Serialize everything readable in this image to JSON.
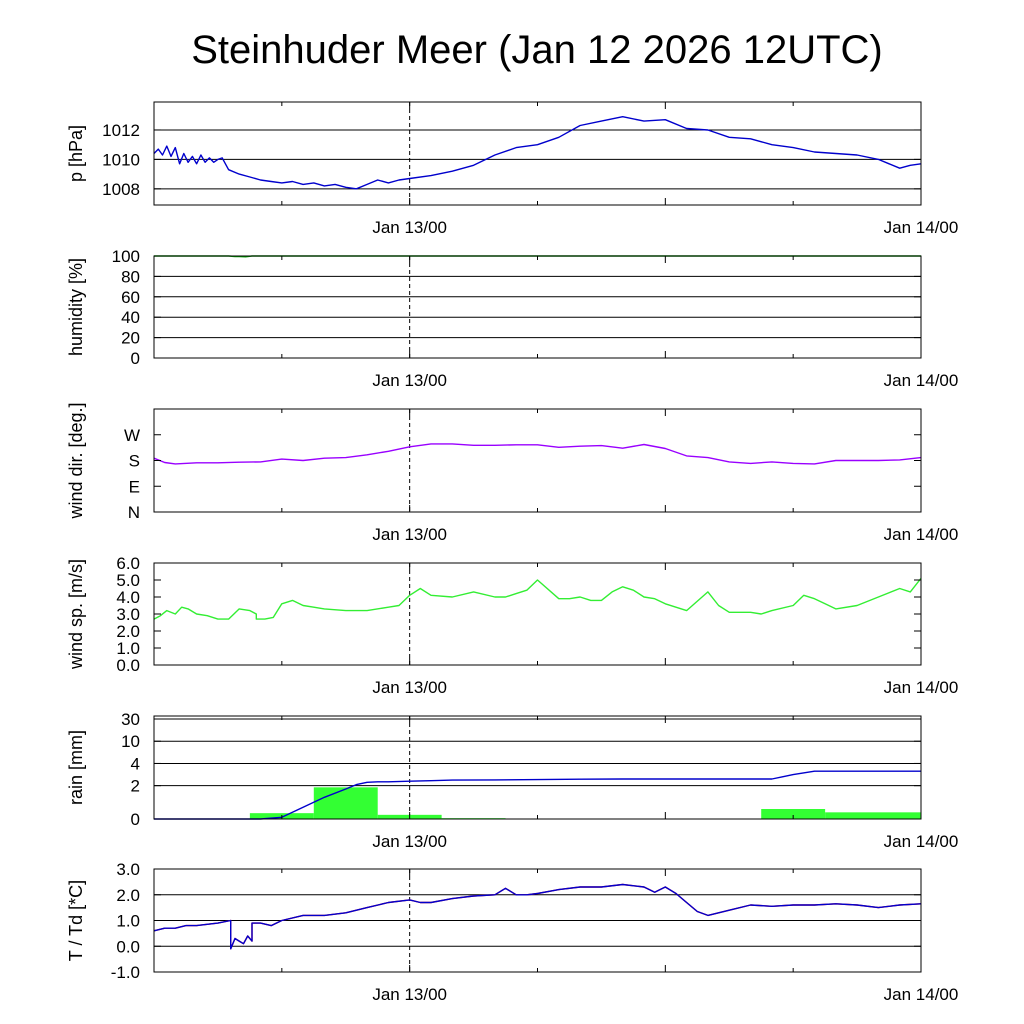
{
  "chart_title": "Steinhuder Meer (Jan 12 2026 12UTC)",
  "colors": {
    "pressure": "#0000cc",
    "humidity": "#00aa00",
    "wind_dir": "#9900ff",
    "wind_speed": "#33ee33",
    "rain_bar": "#33ff33",
    "rain_cum": "#0000cc",
    "temperature": "#ff0000",
    "dewpoint": "#0000cc"
  },
  "chart_data": [
    {
      "type": "line",
      "name": "pressure",
      "ylabel": "p [hPa]",
      "xlabel": "",
      "x_range": [
        12,
        48
      ],
      "ylim": [
        1006.9,
        1013.9
      ],
      "yticks": [
        {
          "v": 1008,
          "label": "1008"
        },
        {
          "v": 1010,
          "label": "1010"
        },
        {
          "v": 1012,
          "label": "1012"
        }
      ],
      "gridlines": [
        1008,
        1010,
        1012
      ],
      "xticks": [
        {
          "v": 24,
          "label": "Jan 13/00"
        },
        {
          "v": 48,
          "label": "Jan 14/00"
        }
      ],
      "series": [
        {
          "name": "pressure",
          "color_key": "pressure",
          "x": [
            12,
            12.2,
            12.4,
            12.6,
            12.8,
            13,
            13.2,
            13.4,
            13.6,
            13.8,
            14,
            14.2,
            14.4,
            14.6,
            14.8,
            15,
            15.2,
            15.5,
            16,
            16.5,
            17,
            17.5,
            18,
            18.5,
            19,
            19.5,
            20,
            20.5,
            21,
            21.5,
            22,
            22.5,
            23,
            23.5,
            24,
            25,
            26,
            27,
            28,
            29,
            30,
            31,
            32,
            33,
            34,
            35,
            36,
            37,
            38,
            39,
            40,
            41,
            42,
            43,
            44,
            45,
            46,
            47,
            47.5,
            48
          ],
          "values": [
            1010.4,
            1010.7,
            1010.3,
            1010.9,
            1010.2,
            1010.8,
            1009.7,
            1010.4,
            1009.8,
            1010.2,
            1009.7,
            1010.3,
            1009.8,
            1010.1,
            1009.8,
            1010.0,
            1010.1,
            1009.3,
            1009.0,
            1008.8,
            1008.6,
            1008.5,
            1008.4,
            1008.5,
            1008.3,
            1008.4,
            1008.2,
            1008.3,
            1008.1,
            1008.0,
            1008.3,
            1008.6,
            1008.4,
            1008.6,
            1008.7,
            1008.9,
            1009.2,
            1009.6,
            1010.3,
            1010.8,
            1011.0,
            1011.5,
            1012.3,
            1012.6,
            1012.9,
            1012.6,
            1012.7,
            1012.1,
            1012.0,
            1011.5,
            1011.4,
            1011.0,
            1010.8,
            1010.5,
            1010.4,
            1010.3,
            1010.0,
            1009.4,
            1009.6,
            1009.7
          ]
        }
      ]
    },
    {
      "type": "line",
      "name": "humidity",
      "ylabel": "humidity [%]",
      "xlabel": "",
      "x_range": [
        12,
        48
      ],
      "ylim": [
        0,
        100
      ],
      "yticks": [
        {
          "v": 0,
          "label": "0"
        },
        {
          "v": 20,
          "label": "20"
        },
        {
          "v": 40,
          "label": "40"
        },
        {
          "v": 60,
          "label": "60"
        },
        {
          "v": 80,
          "label": "80"
        },
        {
          "v": 100,
          "label": "100"
        }
      ],
      "gridlines": [
        20,
        40,
        60,
        80
      ],
      "xticks": [
        {
          "v": 24,
          "label": "Jan 13/00"
        },
        {
          "v": 48,
          "label": "Jan 14/00"
        }
      ],
      "series": [
        {
          "name": "humidity",
          "color_key": "humidity",
          "x": [
            12,
            15.5,
            15.8,
            16,
            16.3,
            16.6,
            17,
            48
          ],
          "values": [
            100,
            100,
            99.5,
            99.4,
            99.2,
            100,
            100,
            100
          ]
        }
      ]
    },
    {
      "type": "line",
      "name": "wind_direction",
      "ylabel": "wind dir. [deg.]",
      "xlabel": "",
      "x_range": [
        12,
        48
      ],
      "ylim": [
        0,
        360
      ],
      "yticks": [
        {
          "v": 0,
          "label": "N"
        },
        {
          "v": 90,
          "label": "E"
        },
        {
          "v": 180,
          "label": "S"
        },
        {
          "v": 270,
          "label": "W"
        }
      ],
      "gridlines": [],
      "xticks": [
        {
          "v": 24,
          "label": "Jan 13/00"
        },
        {
          "v": 48,
          "label": "Jan 14/00"
        }
      ],
      "series": [
        {
          "name": "wind_direction",
          "color_key": "wind_dir",
          "x": [
            12,
            12.5,
            13,
            14,
            15,
            16,
            17,
            18,
            19,
            20,
            21,
            22,
            23,
            24,
            25,
            26,
            27,
            28,
            29,
            30,
            31,
            32,
            33,
            34,
            35,
            36,
            37,
            38,
            39,
            40,
            41,
            42,
            43,
            44,
            45,
            46,
            47,
            48
          ],
          "values": [
            188,
            173,
            168,
            172,
            172,
            174,
            175,
            185,
            180,
            188,
            190,
            200,
            212,
            228,
            238,
            238,
            233,
            233,
            235,
            235,
            226,
            230,
            232,
            223,
            236,
            222,
            196,
            190,
            175,
            170,
            175,
            170,
            168,
            180,
            180,
            180,
            182,
            190
          ]
        }
      ]
    },
    {
      "type": "line",
      "name": "wind_speed",
      "ylabel": "wind sp. [m/s]",
      "xlabel": "",
      "x_range": [
        12,
        48
      ],
      "ylim": [
        0,
        6
      ],
      "yticks": [
        {
          "v": 0,
          "label": "0.0"
        },
        {
          "v": 1,
          "label": "1.0"
        },
        {
          "v": 2,
          "label": "2.0"
        },
        {
          "v": 3,
          "label": "3.0"
        },
        {
          "v": 4,
          "label": "4.0"
        },
        {
          "v": 5,
          "label": "5.0"
        },
        {
          "v": 6,
          "label": "6.0"
        }
      ],
      "gridlines": [],
      "xticks": [
        {
          "v": 24,
          "label": "Jan 13/00"
        },
        {
          "v": 48,
          "label": "Jan 14/00"
        }
      ],
      "series": [
        {
          "name": "wind_speed",
          "color_key": "wind_speed",
          "x": [
            12,
            12.3,
            12.6,
            13,
            13.3,
            13.6,
            14,
            14.5,
            15,
            15.5,
            16,
            16.5,
            16.8,
            16.8,
            17,
            17.2,
            17.6,
            18,
            18.5,
            19,
            19.5,
            20,
            21,
            22,
            23,
            23.5,
            24,
            24.5,
            25,
            26,
            27,
            28,
            28.5,
            29,
            29.5,
            30,
            31,
            31.5,
            32,
            32.5,
            33,
            33.5,
            34,
            34.5,
            35,
            35.5,
            36,
            37,
            38,
            38.5,
            39,
            40,
            40.5,
            41,
            42,
            42.5,
            43,
            43.5,
            44,
            45,
            46,
            47,
            47.5,
            48
          ],
          "values": [
            2.7,
            2.9,
            3.2,
            3.0,
            3.4,
            3.3,
            3.0,
            2.9,
            2.7,
            2.7,
            3.3,
            3.2,
            3.0,
            2.7,
            2.7,
            2.7,
            2.8,
            3.6,
            3.8,
            3.5,
            3.4,
            3.3,
            3.2,
            3.2,
            3.4,
            3.5,
            4.1,
            4.5,
            4.1,
            4.0,
            4.3,
            4.0,
            4.0,
            4.2,
            4.4,
            5.0,
            3.9,
            3.9,
            4.0,
            3.8,
            3.8,
            4.3,
            4.6,
            4.4,
            4.0,
            3.9,
            3.6,
            3.2,
            4.3,
            3.5,
            3.1,
            3.1,
            3.0,
            3.2,
            3.5,
            4.1,
            3.9,
            3.6,
            3.3,
            3.5,
            4.0,
            4.5,
            4.3,
            5.1
          ]
        }
      ]
    },
    {
      "type": "bar",
      "name": "rain",
      "ylabel": "rain [mm]",
      "xlabel": "",
      "x_range": [
        12,
        48
      ],
      "y_scale": "piecewise",
      "y_anchors": [
        [
          0,
          0
        ],
        [
          2,
          1.5
        ],
        [
          4,
          2.5
        ],
        [
          10,
          3.5
        ],
        [
          30,
          4.5
        ]
      ],
      "yticks": [
        {
          "v": 0,
          "label": "0"
        },
        {
          "v": 2,
          "label": "2"
        },
        {
          "v": 4,
          "label": "4"
        },
        {
          "v": 10,
          "label": "10"
        },
        {
          "v": 30,
          "label": "30"
        }
      ],
      "gridlines": [
        2,
        4,
        10,
        30
      ],
      "xticks": [
        {
          "v": 24,
          "label": "Jan 13/00"
        },
        {
          "v": 48,
          "label": "Jan 14/00"
        }
      ],
      "bars": [
        {
          "x0": 16.5,
          "x1": 19.5,
          "value": 0.35
        },
        {
          "x0": 19.5,
          "x1": 22.5,
          "value": 1.9
        },
        {
          "x0": 22.5,
          "x1": 25.5,
          "value": 0.25
        },
        {
          "x0": 25.5,
          "x1": 28.5,
          "value": 0.05
        },
        {
          "x0": 40.5,
          "x1": 43.5,
          "value": 0.6
        },
        {
          "x0": 43.5,
          "x1": 48,
          "value": 0.4
        }
      ],
      "series": [
        {
          "name": "accumulated rain",
          "color_key": "rain_cum",
          "x": [
            12,
            17,
            18,
            19,
            20,
            21,
            21.5,
            22,
            22.5,
            23,
            24,
            25,
            26,
            28,
            30,
            32,
            34,
            36,
            38,
            40,
            41,
            41.5,
            42,
            43,
            44,
            46,
            48
          ],
          "values": [
            0,
            0,
            0.1,
            0.7,
            1.3,
            1.8,
            2.1,
            2.3,
            2.35,
            2.35,
            2.4,
            2.45,
            2.5,
            2.52,
            2.55,
            2.58,
            2.6,
            2.6,
            2.6,
            2.6,
            2.6,
            2.8,
            3.0,
            3.3,
            3.3,
            3.3,
            3.3
          ]
        }
      ]
    },
    {
      "type": "line",
      "name": "temperature_dewpoint",
      "ylabel": "T / Td [*C]",
      "xlabel": "",
      "x_range": [
        12,
        48
      ],
      "ylim": [
        -1,
        3
      ],
      "yticks": [
        {
          "v": -1,
          "label": "-1.0"
        },
        {
          "v": 0,
          "label": "0.0"
        },
        {
          "v": 1,
          "label": "1.0"
        },
        {
          "v": 2,
          "label": "2.0"
        },
        {
          "v": 3,
          "label": "3.0"
        }
      ],
      "gridlines": [
        0,
        1,
        2
      ],
      "xticks": [
        {
          "v": 24,
          "label": "Jan 13/00"
        },
        {
          "v": 48,
          "label": "Jan 14/00"
        }
      ],
      "series": [
        {
          "name": "temperature",
          "color_key": "temperature",
          "x": [
            12,
            12.5,
            13,
            13.5,
            14,
            15,
            15.6,
            15.6,
            15.8,
            16,
            16.2,
            16.4,
            16.6,
            16.6,
            17,
            17.5,
            18,
            19,
            20,
            21,
            22,
            23,
            24,
            24.5,
            25,
            26,
            27,
            28,
            28.5,
            29,
            29.5,
            30,
            31,
            32,
            33,
            34,
            35,
            35.5,
            36,
            36.5,
            37,
            37.5,
            38,
            39,
            40,
            41,
            42,
            43,
            44,
            45,
            46,
            47,
            48
          ],
          "values": [
            0.6,
            0.7,
            0.7,
            0.8,
            0.8,
            0.9,
            1.0,
            -0.1,
            0.3,
            0.2,
            0.1,
            0.4,
            0.2,
            0.9,
            0.9,
            0.8,
            1.0,
            1.2,
            1.2,
            1.3,
            1.5,
            1.7,
            1.8,
            1.7,
            1.7,
            1.85,
            1.95,
            2.0,
            2.25,
            2.0,
            2.0,
            2.05,
            2.2,
            2.3,
            2.3,
            2.4,
            2.3,
            2.1,
            2.3,
            2.05,
            1.7,
            1.35,
            1.2,
            1.4,
            1.6,
            1.55,
            1.6,
            1.6,
            1.65,
            1.6,
            1.5,
            1.6,
            1.65
          ]
        },
        {
          "name": "dewpoint",
          "color_key": "dewpoint",
          "x": [
            12,
            12.5,
            13,
            13.5,
            14,
            15,
            15.6,
            15.6,
            15.8,
            16,
            16.2,
            16.4,
            16.6,
            16.6,
            17,
            17.5,
            18,
            19,
            20,
            21,
            22,
            23,
            24,
            24.5,
            25,
            26,
            27,
            28,
            28.5,
            29,
            29.5,
            30,
            31,
            32,
            33,
            34,
            35,
            35.5,
            36,
            36.5,
            37,
            37.5,
            38,
            39,
            40,
            41,
            42,
            43,
            44,
            45,
            46,
            47,
            48
          ],
          "values": [
            0.6,
            0.7,
            0.7,
            0.8,
            0.8,
            0.9,
            1.0,
            -0.1,
            0.3,
            0.2,
            0.1,
            0.4,
            0.2,
            0.9,
            0.9,
            0.8,
            1.0,
            1.2,
            1.2,
            1.3,
            1.5,
            1.7,
            1.8,
            1.7,
            1.7,
            1.85,
            1.95,
            2.0,
            2.25,
            2.0,
            2.0,
            2.05,
            2.2,
            2.3,
            2.3,
            2.4,
            2.3,
            2.1,
            2.3,
            2.05,
            1.7,
            1.35,
            1.2,
            1.4,
            1.6,
            1.55,
            1.6,
            1.6,
            1.65,
            1.6,
            1.5,
            1.6,
            1.65
          ]
        }
      ]
    }
  ]
}
